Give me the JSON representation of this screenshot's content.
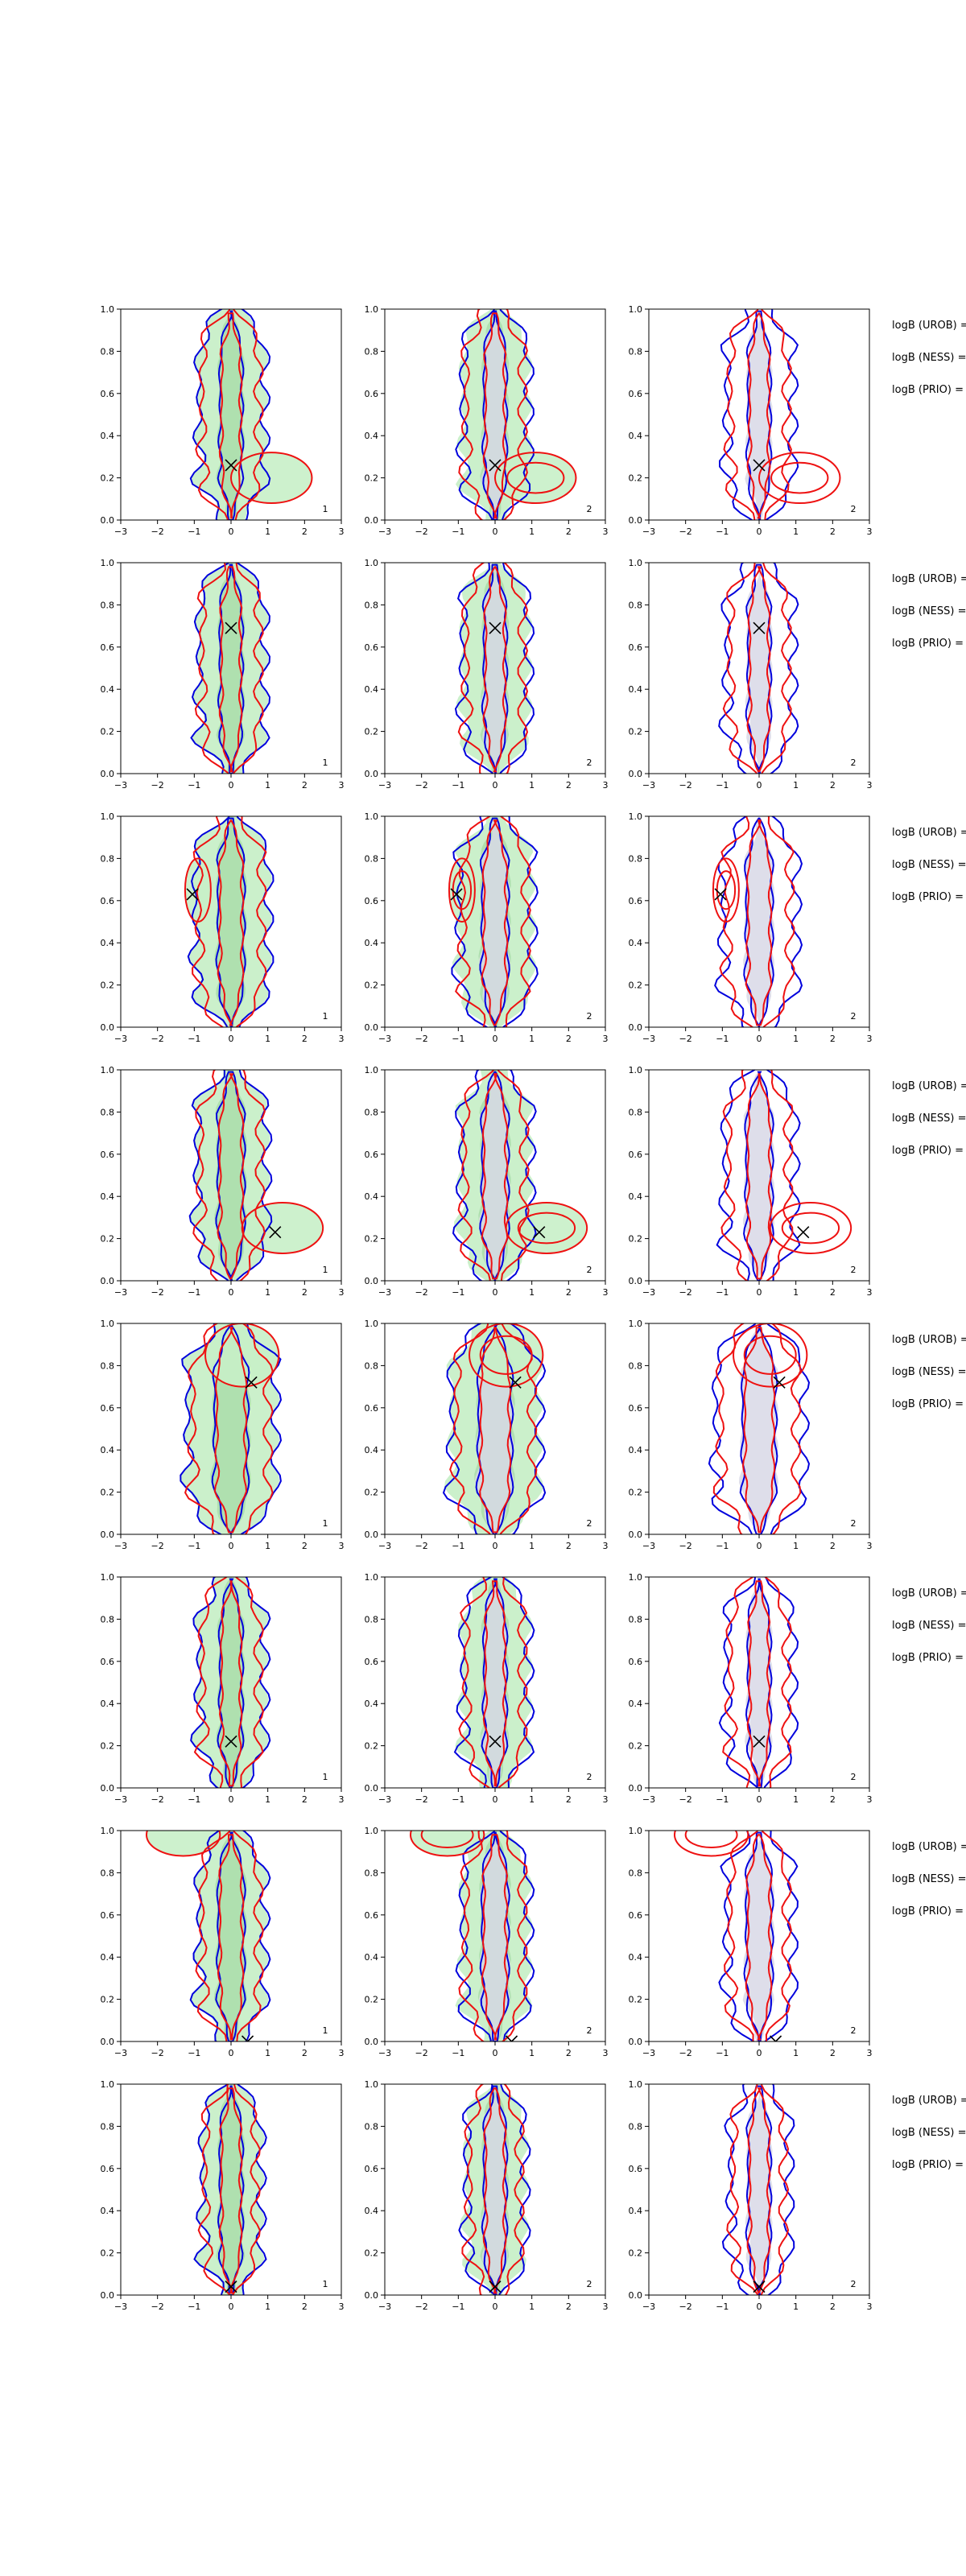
{
  "figure": {
    "rows": 8,
    "cols": 3,
    "xlim": [
      -3,
      3
    ],
    "ylim": [
      0,
      1
    ],
    "xticks": [
      -3,
      -2,
      -1,
      0,
      1,
      2,
      3
    ],
    "yticks": [
      0.0,
      0.2,
      0.4,
      0.6,
      0.8,
      1.0
    ],
    "side_labels": [
      "logB (UROB) =",
      "logB (NESS) =",
      "logB (PRIO) ="
    ],
    "colors": {
      "green_fill": "#c8efc8",
      "green_fill_dark": "#a8dca8",
      "grey_fill": "#d8d8e6",
      "blue_line": "#0000dd",
      "red_line": "#ee1111",
      "marker": "#000000"
    }
  },
  "chart_data": {
    "type": "contour-grid",
    "title": "",
    "xlabel": "",
    "ylabel": "",
    "panel_labels": [
      [
        "1",
        "2",
        "2"
      ],
      [
        "1",
        "2",
        "2"
      ],
      [
        "1",
        "2",
        "2"
      ],
      [
        "1",
        "2",
        "2"
      ],
      [
        "1",
        "2",
        "2"
      ],
      [
        "1",
        "2",
        "2"
      ],
      [
        "1",
        "2",
        "2"
      ],
      [
        "1",
        "2",
        "2"
      ]
    ],
    "true_points": [
      {
        "x": 0.0,
        "y": 0.26
      },
      {
        "x": 0.0,
        "y": 0.69
      },
      {
        "x": -1.05,
        "y": 0.63
      },
      {
        "x": 1.2,
        "y": 0.23
      },
      {
        "x": 0.55,
        "y": 0.72
      },
      {
        "x": 0.0,
        "y": 0.22
      },
      {
        "x": 0.45,
        "y": 0.0
      },
      {
        "x": 0.0,
        "y": 0.04
      }
    ],
    "rows": [
      {
        "outer_half_width": 0.9,
        "inner_half_width": 0.3,
        "bulge": {
          "x": 1.1,
          "y": 0.2,
          "rx": 1.1,
          "ry": 0.12
        }
      },
      {
        "outer_half_width": 0.9,
        "inner_half_width": 0.3,
        "bulge": null
      },
      {
        "outer_half_width": 1.0,
        "inner_half_width": 0.35,
        "bulge": {
          "x": -0.9,
          "y": 0.65,
          "rx": 0.35,
          "ry": 0.15
        }
      },
      {
        "outer_half_width": 0.95,
        "inner_half_width": 0.35,
        "bulge": {
          "x": 1.4,
          "y": 0.25,
          "rx": 1.1,
          "ry": 0.12
        }
      },
      {
        "outer_half_width": 1.2,
        "inner_half_width": 0.45,
        "bulge": {
          "x": 0.3,
          "y": 0.85,
          "rx": 1.0,
          "ry": 0.15
        }
      },
      {
        "outer_half_width": 0.9,
        "inner_half_width": 0.3,
        "bulge": null
      },
      {
        "outer_half_width": 0.9,
        "inner_half_width": 0.35,
        "bulge": {
          "x": -1.3,
          "y": 0.98,
          "rx": 1.0,
          "ry": 0.1
        }
      },
      {
        "outer_half_width": 0.8,
        "inner_half_width": 0.3,
        "bulge": null
      }
    ]
  }
}
